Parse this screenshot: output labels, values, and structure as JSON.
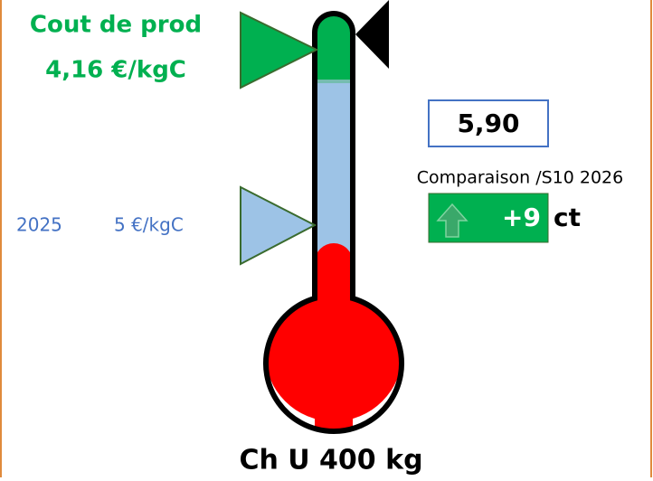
{
  "cost": {
    "title": "Cout de prod",
    "value": "4,16 €/kgC"
  },
  "reference": {
    "year": "2025",
    "value": "5 €/kgC"
  },
  "price": "5,90",
  "comparison": {
    "label": "Comparaison /S10 2026",
    "delta": "+9",
    "unit": "ct"
  },
  "footer": "Ch U 400 kg"
}
